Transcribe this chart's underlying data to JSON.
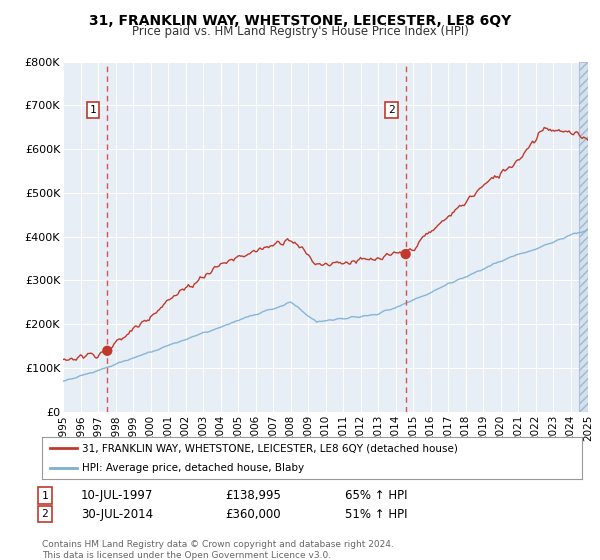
{
  "title": "31, FRANKLIN WAY, WHETSTONE, LEICESTER, LE8 6QY",
  "subtitle": "Price paid vs. HM Land Registry's House Price Index (HPI)",
  "legend_line1": "31, FRANKLIN WAY, WHETSTONE, LEICESTER, LE8 6QY (detached house)",
  "legend_line2": "HPI: Average price, detached house, Blaby",
  "footer": "Contains HM Land Registry data © Crown copyright and database right 2024.\nThis data is licensed under the Open Government Licence v3.0.",
  "annotation1_date": "10-JUL-1997",
  "annotation1_price": "£138,995",
  "annotation1_hpi": "65% ↑ HPI",
  "annotation2_date": "30-JUL-2014",
  "annotation2_price": "£360,000",
  "annotation2_hpi": "51% ↑ HPI",
  "sale1_year": 1997.53,
  "sale1_price": 138995,
  "sale2_year": 2014.58,
  "sale2_price": 360000,
  "ylim": [
    0,
    800000
  ],
  "xlim": [
    1995,
    2025
  ],
  "fig_bg": "#ffffff",
  "plot_bg": "#e8eef5",
  "red_color": "#c0392b",
  "blue_color": "#7bafd4",
  "grid_color": "#ffffff",
  "dashed_color": "#e05050",
  "yticks": [
    0,
    100000,
    200000,
    300000,
    400000,
    500000,
    600000,
    700000,
    800000
  ],
  "ytick_labels": [
    "£0",
    "£100K",
    "£200K",
    "£300K",
    "£400K",
    "£500K",
    "£600K",
    "£700K",
    "£800K"
  ],
  "xticks": [
    1995,
    1996,
    1997,
    1998,
    1999,
    2000,
    2001,
    2002,
    2003,
    2004,
    2005,
    2006,
    2007,
    2008,
    2009,
    2010,
    2011,
    2012,
    2013,
    2014,
    2015,
    2016,
    2017,
    2018,
    2019,
    2020,
    2021,
    2022,
    2023,
    2024,
    2025
  ]
}
